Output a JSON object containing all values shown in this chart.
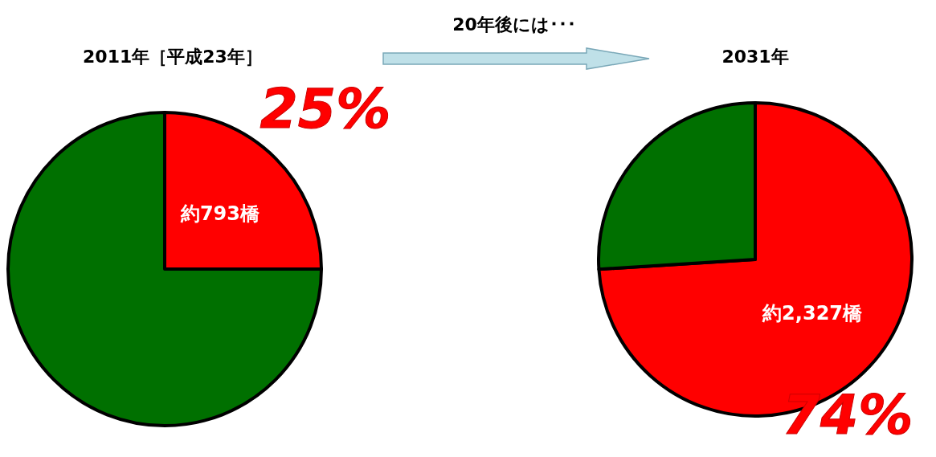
{
  "chart_data": [
    {
      "type": "pie",
      "title": "2011年［平成23年］",
      "categories": [
        "約793橋",
        null
      ],
      "values": [
        25,
        75
      ],
      "colors": [
        "#ff0000",
        "#007000"
      ],
      "value_labels": [
        "25%",
        null
      ],
      "annotations": [
        "20年後には･･･"
      ]
    },
    {
      "type": "pie",
      "title": "2031年",
      "categories": [
        "約2,327橋",
        null
      ],
      "values": [
        74,
        26
      ],
      "colors": [
        "#ff0000",
        "#007000"
      ],
      "value_labels": [
        "74%",
        null
      ]
    }
  ]
}
